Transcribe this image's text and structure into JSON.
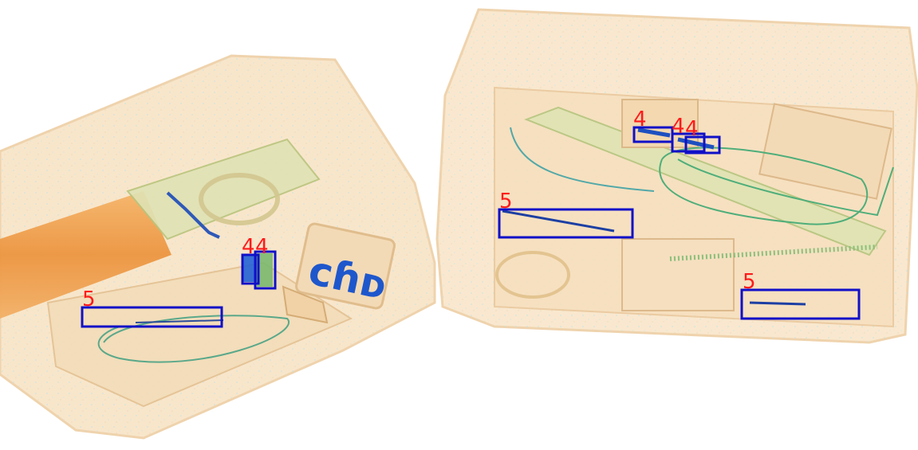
{
  "image": {
    "description_free": true,
    "colors": {
      "background": "#ffffff",
      "bag_fill": "#f8e4c6",
      "bag_edge": "#e7c598",
      "organic_dense": "#f0a050",
      "green_item": "#9fc77a",
      "blue_metal": "#1f5fd6",
      "box_stroke": "#1010c8",
      "label_color": "#ff1a1a"
    }
  },
  "detections": [
    {
      "label": "4"
    },
    {
      "label": "4"
    },
    {
      "label": "4"
    },
    {
      "label": "4"
    },
    {
      "label": "4"
    },
    {
      "label": "5"
    },
    {
      "label": "5"
    },
    {
      "label": "5"
    }
  ]
}
